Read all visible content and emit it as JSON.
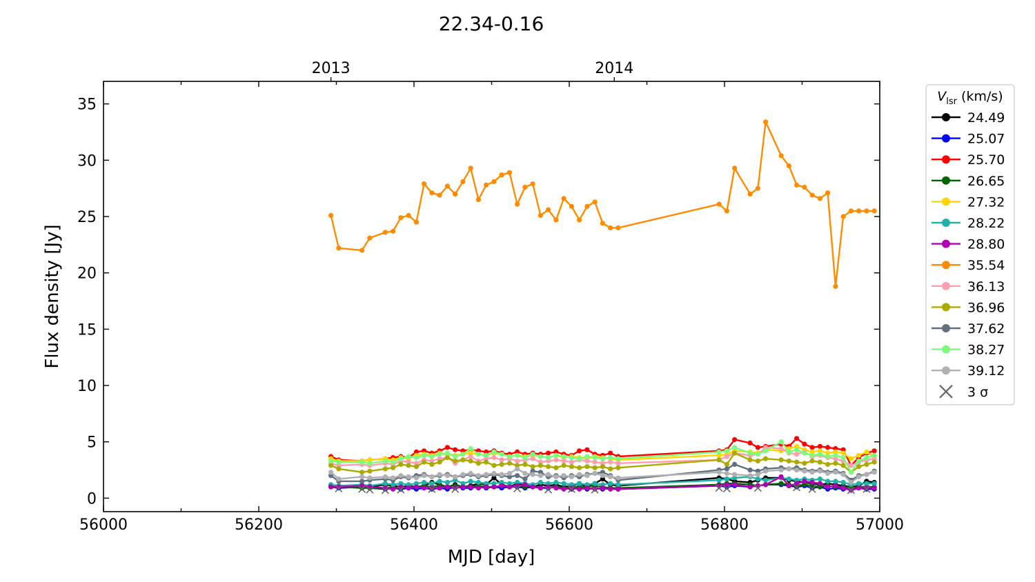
{
  "chart_data": {
    "type": "line",
    "title": "22.34-0.16",
    "xlabel": "MJD [day]",
    "ylabel": "Flux density [Jy]",
    "xlim": [
      56000,
      57000
    ],
    "ylim": [
      -1.2,
      37
    ],
    "x_ticks": [
      56000,
      56200,
      56400,
      56600,
      56800,
      57000
    ],
    "y_ticks": [
      0,
      5,
      10,
      15,
      20,
      25,
      30,
      35
    ],
    "top_axis_ticks": [
      {
        "label": "2013",
        "x": 56293
      },
      {
        "label": "2014",
        "x": 56658
      }
    ],
    "grid": false,
    "legend": {
      "placement": "outside-right",
      "title_main": "V",
      "title_sub": "lsr",
      "title_units": " (km/s)",
      "sigma_label": "3 σ"
    },
    "x": [
      56293,
      56303,
      56333,
      56343,
      56363,
      56373,
      56383,
      56393,
      56403,
      56413,
      56423,
      56433,
      56443,
      56453,
      56463,
      56473,
      56483,
      56493,
      56503,
      56513,
      56523,
      56533,
      56543,
      56553,
      56563,
      56573,
      56583,
      56593,
      56603,
      56613,
      56623,
      56633,
      56643,
      56653,
      56663,
      56793,
      56803,
      56813,
      56833,
      56843,
      56853,
      56873,
      56883,
      56893,
      56903,
      56913,
      56923,
      56933,
      56943,
      56953,
      56963,
      56973,
      56983,
      56993
    ],
    "series": [
      {
        "name": "24.49",
        "color": "#000000",
        "values": [
          1.1,
          1.0,
          1.1,
          1.0,
          1.2,
          1.1,
          1.0,
          1.1,
          1.0,
          1.1,
          1.4,
          1.2,
          1.0,
          1.2,
          1.0,
          1.1,
          1.3,
          1.2,
          1.8,
          1.2,
          1.0,
          1.3,
          1.2,
          1.0,
          1.2,
          1.1,
          1.2,
          1.0,
          1.1,
          1.3,
          1.0,
          1.3,
          1.7,
          1.2,
          1.1,
          1.8,
          1.7,
          1.5,
          1.4,
          1.6,
          1.8,
          1.8,
          1.6,
          1.5,
          1.4,
          1.3,
          1.2,
          1.3,
          1.2,
          1.1,
          1.0,
          1.1,
          1.5,
          1.4
        ]
      },
      {
        "name": "25.07",
        "color": "#0000ff",
        "values": [
          1.0,
          0.9,
          1.0,
          0.9,
          0.8,
          0.9,
          0.8,
          0.9,
          0.8,
          0.9,
          0.8,
          0.9,
          0.8,
          1.0,
          0.9,
          0.9,
          1.0,
          0.9,
          1.0,
          0.9,
          1.0,
          1.0,
          0.9,
          1.0,
          0.9,
          0.9,
          1.0,
          0.9,
          0.8,
          0.9,
          0.8,
          0.9,
          0.8,
          0.9,
          0.8,
          1.1,
          1.0,
          1.1,
          1.0,
          1.1,
          1.2,
          1.2,
          1.1,
          1.0,
          1.1,
          0.9,
          1.0,
          0.8,
          0.9,
          0.8,
          0.8,
          0.9,
          0.8,
          0.8
        ]
      },
      {
        "name": "25.70",
        "color": "#ff0000",
        "values": [
          3.7,
          3.4,
          3.3,
          3.4,
          3.5,
          3.6,
          3.7,
          3.6,
          4.1,
          4.2,
          4.0,
          4.2,
          4.5,
          4.3,
          4.2,
          4.3,
          4.2,
          4.1,
          4.2,
          4.0,
          3.9,
          4.1,
          3.9,
          4.0,
          3.9,
          4.0,
          4.1,
          3.9,
          3.8,
          4.2,
          4.3,
          3.9,
          3.8,
          4.0,
          3.7,
          4.2,
          4.3,
          5.2,
          4.9,
          4.5,
          4.6,
          4.8,
          4.6,
          5.3,
          4.8,
          4.5,
          4.6,
          4.5,
          4.4,
          4.3,
          2.9,
          3.6,
          4.0,
          4.2
        ]
      },
      {
        "name": "26.65",
        "color": "#006400",
        "values": [
          1.1,
          1.0,
          0.9,
          0.9,
          0.9,
          1.0,
          0.9,
          1.0,
          1.0,
          1.1,
          1.0,
          1.1,
          1.0,
          1.1,
          1.0,
          1.0,
          1.1,
          1.0,
          1.0,
          1.1,
          1.0,
          1.1,
          1.0,
          1.1,
          0.9,
          1.0,
          1.0,
          0.9,
          1.0,
          1.0,
          1.0,
          1.1,
          1.0,
          0.9,
          0.9,
          1.2,
          1.3,
          1.3,
          1.2,
          1.1,
          1.2,
          1.3,
          1.2,
          1.1,
          1.2,
          1.1,
          1.0,
          1.1,
          1.0,
          1.0,
          0.9,
          1.0,
          1.0,
          1.0
        ]
      },
      {
        "name": "27.32",
        "color": "#ffd700",
        "values": [
          3.5,
          3.3,
          3.3,
          3.4,
          3.5,
          3.4,
          3.6,
          3.5,
          3.8,
          3.9,
          3.8,
          4.0,
          3.9,
          3.8,
          3.9,
          4.0,
          3.9,
          3.8,
          4.0,
          3.9,
          3.7,
          3.8,
          3.7,
          3.8,
          3.7,
          3.6,
          3.8,
          3.6,
          3.7,
          3.6,
          3.5,
          3.7,
          3.6,
          3.5,
          3.4,
          3.8,
          3.9,
          4.2,
          4.1,
          4.0,
          4.3,
          4.2,
          4.4,
          4.6,
          4.3,
          4.1,
          4.2,
          4.0,
          4.1,
          4.0,
          3.5,
          3.8,
          4.1,
          3.7
        ]
      },
      {
        "name": "28.22",
        "color": "#20b2aa",
        "values": [
          1.2,
          1.1,
          1.2,
          1.1,
          1.3,
          1.2,
          1.3,
          1.2,
          1.3,
          1.4,
          1.3,
          1.5,
          1.4,
          1.6,
          1.3,
          1.5,
          1.4,
          1.3,
          1.3,
          1.4,
          1.3,
          1.4,
          1.3,
          1.2,
          1.4,
          1.3,
          1.4,
          1.3,
          1.2,
          1.3,
          1.2,
          1.3,
          1.2,
          1.3,
          1.2,
          1.6,
          1.7,
          1.8,
          1.9,
          1.7,
          1.6,
          1.8,
          1.7,
          1.6,
          1.7,
          1.6,
          1.7,
          1.5,
          1.5,
          1.4,
          1.2,
          1.3,
          1.3,
          1.3
        ]
      },
      {
        "name": "28.80",
        "color": "#b000b0",
        "values": [
          1.0,
          1.0,
          1.1,
          1.0,
          0.9,
          0.8,
          1.0,
          0.9,
          1.0,
          0.9,
          0.9,
          0.9,
          1.0,
          0.9,
          1.0,
          1.0,
          0.9,
          1.0,
          1.0,
          1.1,
          1.0,
          1.1,
          1.2,
          1.0,
          0.9,
          1.0,
          0.9,
          0.8,
          0.9,
          0.8,
          0.9,
          0.8,
          0.9,
          0.8,
          0.8,
          1.1,
          1.2,
          1.2,
          1.0,
          1.1,
          1.2,
          1.9,
          1.1,
          1.3,
          1.5,
          1.4,
          1.3,
          1.0,
          1.1,
          0.9,
          0.7,
          0.9,
          0.9,
          0.9
        ]
      },
      {
        "name": "35.54",
        "color": "#ff8c00",
        "values": [
          25.1,
          22.2,
          22.0,
          23.1,
          23.6,
          23.7,
          24.9,
          25.1,
          24.5,
          27.9,
          27.1,
          26.9,
          27.7,
          27.0,
          28.1,
          29.3,
          26.5,
          27.8,
          28.1,
          28.7,
          28.9,
          26.1,
          27.6,
          27.9,
          25.1,
          25.6,
          24.7,
          26.6,
          25.9,
          24.7,
          25.9,
          26.3,
          24.4,
          24.0,
          24.0,
          26.1,
          25.5,
          29.3,
          27.0,
          27.5,
          33.4,
          30.4,
          29.5,
          27.8,
          27.6,
          26.9,
          26.6,
          27.1,
          18.8,
          25.0,
          25.5,
          25.5,
          25.5,
          25.5
        ]
      },
      {
        "name": "36.13",
        "color": "#ff9eb0",
        "values": [
          3.1,
          2.9,
          3.0,
          2.9,
          3.1,
          3.0,
          3.3,
          3.2,
          3.1,
          3.4,
          3.3,
          3.5,
          3.6,
          3.1,
          3.4,
          3.7,
          3.3,
          3.5,
          3.6,
          3.4,
          3.5,
          3.3,
          3.4,
          3.5,
          3.2,
          3.3,
          3.4,
          3.3,
          3.2,
          3.4,
          3.3,
          3.2,
          3.1,
          3.2,
          3.1,
          3.4,
          3.7,
          4.0,
          3.8,
          3.9,
          4.5,
          4.4,
          4.0,
          3.9,
          4.1,
          3.7,
          3.8,
          3.6,
          3.5,
          3.3,
          2.9,
          3.2,
          3.4,
          3.5
        ]
      },
      {
        "name": "36.96",
        "color": "#aaaa00",
        "values": [
          2.9,
          2.6,
          2.3,
          2.4,
          2.6,
          2.7,
          3.0,
          2.9,
          2.8,
          3.2,
          3.0,
          3.2,
          3.6,
          3.3,
          3.4,
          3.3,
          3.1,
          3.2,
          2.9,
          3.0,
          3.1,
          2.9,
          3.0,
          2.8,
          2.9,
          2.8,
          2.7,
          2.9,
          2.8,
          2.7,
          2.8,
          2.7,
          2.8,
          2.6,
          2.7,
          3.4,
          3.0,
          4.0,
          3.4,
          3.3,
          3.5,
          3.4,
          3.3,
          3.2,
          3.1,
          3.3,
          3.2,
          3.0,
          3.1,
          2.9,
          2.3,
          2.8,
          3.0,
          3.2
        ]
      },
      {
        "name": "37.62",
        "color": "#607080",
        "values": [
          2.0,
          1.5,
          1.5,
          1.6,
          1.7,
          1.6,
          1.9,
          1.8,
          2.0,
          2.1,
          1.9,
          2.0,
          2.1,
          1.9,
          2.0,
          2.1,
          1.9,
          2.0,
          2.1,
          2.0,
          1.9,
          2.0,
          1.7,
          2.4,
          2.3,
          1.9,
          2.0,
          1.8,
          2.0,
          1.9,
          2.1,
          2.2,
          2.3,
          2.0,
          1.6,
          2.5,
          2.6,
          3.0,
          2.5,
          2.4,
          2.6,
          2.7,
          2.6,
          2.7,
          2.5,
          2.4,
          2.5,
          2.3,
          2.4,
          2.2,
          1.6,
          2.0,
          2.1,
          2.4
        ]
      },
      {
        "name": "38.27",
        "color": "#7cfc7c",
        "values": [
          3.3,
          3.2,
          3.2,
          3.1,
          3.3,
          3.2,
          3.5,
          3.7,
          3.6,
          3.8,
          3.7,
          3.9,
          4.0,
          3.7,
          3.9,
          4.4,
          3.9,
          3.8,
          4.1,
          3.9,
          3.7,
          3.8,
          3.6,
          3.9,
          3.7,
          3.6,
          3.8,
          3.7,
          3.6,
          3.5,
          3.7,
          3.6,
          3.5,
          3.6,
          3.5,
          4.1,
          4.2,
          4.5,
          4.0,
          3.9,
          4.2,
          5.0,
          4.1,
          4.3,
          4.0,
          3.8,
          3.9,
          3.7,
          3.8,
          3.6,
          2.3,
          3.3,
          3.6,
          3.8
        ]
      },
      {
        "name": "39.12",
        "color": "#b0b0b0",
        "values": [
          2.3,
          1.7,
          1.9,
          1.8,
          1.9,
          1.8,
          2.0,
          1.9,
          1.8,
          2.0,
          1.9,
          2.1,
          2.0,
          1.9,
          2.1,
          2.2,
          2.0,
          2.1,
          2.2,
          2.1,
          2.2,
          2.6,
          2.2,
          2.1,
          2.0,
          2.1,
          1.9,
          2.0,
          1.9,
          2.1,
          2.0,
          2.2,
          2.0,
          1.9,
          1.8,
          2.3,
          2.2,
          2.1,
          2.0,
          2.1,
          2.4,
          2.5,
          2.6,
          2.5,
          2.4,
          2.3,
          2.4,
          2.2,
          2.3,
          2.1,
          1.4,
          1.9,
          2.1,
          2.3
        ]
      }
    ],
    "sigma3_points": [
      {
        "x": 56303,
        "y": 0.85
      },
      {
        "x": 56333,
        "y": 0.8
      },
      {
        "x": 56343,
        "y": 0.75
      },
      {
        "x": 56363,
        "y": 0.7
      },
      {
        "x": 56383,
        "y": 0.75
      },
      {
        "x": 56423,
        "y": 0.8
      },
      {
        "x": 56453,
        "y": 0.8
      },
      {
        "x": 56533,
        "y": 0.85
      },
      {
        "x": 56573,
        "y": 0.75
      },
      {
        "x": 56603,
        "y": 0.8
      },
      {
        "x": 56633,
        "y": 0.75
      },
      {
        "x": 56793,
        "y": 0.9
      },
      {
        "x": 56803,
        "y": 0.85
      },
      {
        "x": 56843,
        "y": 0.9
      },
      {
        "x": 56893,
        "y": 0.95
      },
      {
        "x": 56913,
        "y": 0.8
      },
      {
        "x": 56963,
        "y": 0.7
      },
      {
        "x": 56983,
        "y": 0.8
      }
    ]
  }
}
